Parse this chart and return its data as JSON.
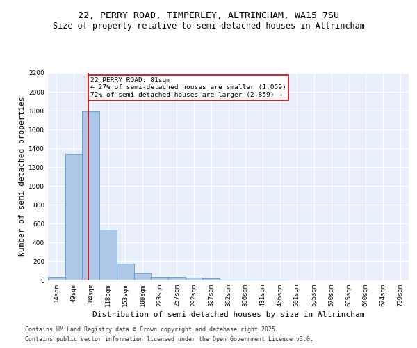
{
  "title_line1": "22, PERRY ROAD, TIMPERLEY, ALTRINCHAM, WA15 7SU",
  "title_line2": "Size of property relative to semi-detached houses in Altrincham",
  "xlabel": "Distribution of semi-detached houses by size in Altrincham",
  "ylabel": "Number of semi-detached properties",
  "bin_labels": [
    "14sqm",
    "49sqm",
    "84sqm",
    "118sqm",
    "153sqm",
    "188sqm",
    "223sqm",
    "257sqm",
    "292sqm",
    "327sqm",
    "362sqm",
    "396sqm",
    "431sqm",
    "466sqm",
    "501sqm",
    "535sqm",
    "570sqm",
    "605sqm",
    "640sqm",
    "674sqm",
    "709sqm"
  ],
  "bar_values": [
    35,
    1340,
    1790,
    535,
    175,
    80,
    35,
    30,
    25,
    20,
    5,
    2,
    1,
    1,
    0,
    0,
    0,
    0,
    0,
    0,
    0
  ],
  "bar_color": "#aec6e8",
  "bar_edge_color": "#5b9bd5",
  "red_line_x": 1.85,
  "annotation_title": "22 PERRY ROAD: 81sqm",
  "annotation_line2": "← 27% of semi-detached houses are smaller (1,059)",
  "annotation_line3": "72% of semi-detached houses are larger (2,859) →",
  "annotation_box_color": "#ffffff",
  "annotation_box_edge": "#cc0000",
  "red_line_color": "#cc0000",
  "footer_line1": "Contains HM Land Registry data © Crown copyright and database right 2025.",
  "footer_line2": "Contains public sector information licensed under the Open Government Licence v3.0.",
  "ylim": [
    0,
    2200
  ],
  "yticks": [
    0,
    200,
    400,
    600,
    800,
    1000,
    1200,
    1400,
    1600,
    1800,
    2000,
    2200
  ],
  "background_color": "#eaf0fb",
  "grid_color": "#ffffff",
  "title_fontsize": 9.5,
  "subtitle_fontsize": 8.5,
  "ylabel_fontsize": 8,
  "xlabel_fontsize": 8,
  "tick_fontsize": 6.5,
  "annotation_fontsize": 6.8,
  "footer_fontsize": 6
}
